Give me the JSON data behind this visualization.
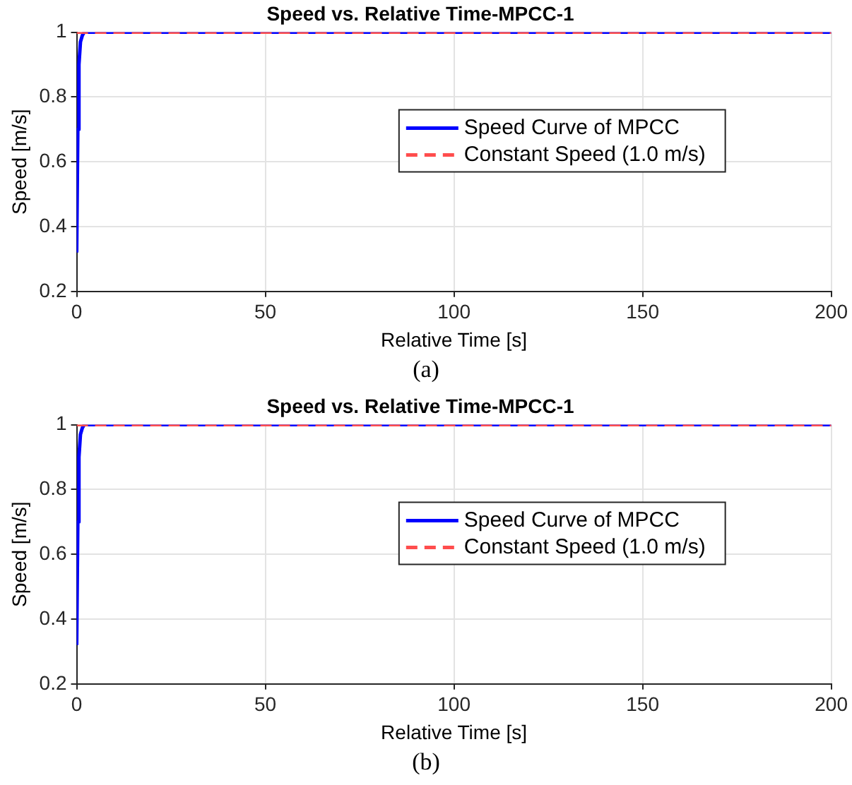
{
  "chart_data": [
    {
      "type": "line",
      "title": "Speed vs. Relative Time-MPCC-1",
      "xlabel": "Relative Time [s]",
      "ylabel": "Speed [m/s]",
      "xlim": [
        0,
        200
      ],
      "xticks": [
        0,
        50,
        100,
        150,
        200
      ],
      "ylim": [
        0.2,
        1
      ],
      "yticks": [
        0.2,
        0.4,
        0.6,
        0.8,
        1
      ],
      "grid": true,
      "legend": "right",
      "annotations": [
        "(a)"
      ],
      "series": [
        {
          "name": "Speed Curve of MPCC",
          "color": "#0000ff",
          "line_style": "solid",
          "x": [
            0,
            0.3,
            0.6,
            1,
            1.5,
            2,
            5,
            200
          ],
          "values": [
            0.32,
            0.7,
            0.9,
            0.97,
            0.99,
            1,
            1,
            1
          ]
        },
        {
          "name": "Constant Speed (1.0 m/s)",
          "color": "#ff4d4d",
          "line_style": "dashed",
          "x": [
            0,
            200
          ],
          "values": [
            1,
            1
          ]
        }
      ]
    },
    {
      "type": "line",
      "title": "Speed vs. Relative Time-MPCC-1",
      "xlabel": "Relative Time [s]",
      "ylabel": "Speed [m/s]",
      "xlim": [
        0,
        200
      ],
      "xticks": [
        0,
        50,
        100,
        150,
        200
      ],
      "ylim": [
        0.2,
        1
      ],
      "yticks": [
        0.2,
        0.4,
        0.6,
        0.8,
        1
      ],
      "grid": true,
      "legend": "right",
      "annotations": [
        "(b)"
      ],
      "series": [
        {
          "name": "Speed Curve of MPCC",
          "color": "#0000ff",
          "line_style": "solid",
          "x": [
            0,
            0.3,
            0.6,
            1,
            1.5,
            2,
            5,
            200
          ],
          "values": [
            0.32,
            0.7,
            0.9,
            0.97,
            0.99,
            1,
            1,
            1
          ]
        },
        {
          "name": "Constant Speed (1.0 m/s)",
          "color": "#ff4d4d",
          "line_style": "dashed",
          "x": [
            0,
            200
          ],
          "values": [
            1,
            1
          ]
        }
      ]
    }
  ]
}
